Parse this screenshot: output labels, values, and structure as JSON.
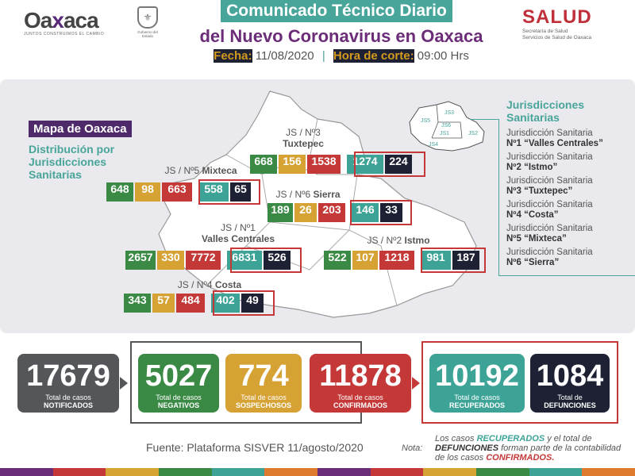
{
  "header": {
    "logo_word_a": "Oa",
    "logo_word_x": "x",
    "logo_word_b": "aca",
    "logo_tagline": "JUNTOS CONSTRUIMOS EL CAMBIO",
    "seal_caption": "Gobierno del Estado",
    "title_line1": "Comunicado Técnico Diario",
    "title_line2": "del Nuevo Coronavirus en Oaxaca",
    "date_label": "Fecha:",
    "date_value": "11/08/2020",
    "cut_label": "Hora de corte:",
    "cut_value": "09:00 Hrs",
    "salud_name": "SALUD",
    "salud_sub1": "Secretaría de Salud",
    "salud_sub2": "Servicios de Salud de Oaxaca"
  },
  "map": {
    "label": "Mapa de Oaxaca",
    "description": "Distribución por Jurisdicciones Sanitarias"
  },
  "regions": [
    {
      "pre": "JS / Nº3",
      "name": "Tuxtepec",
      "values": [
        668,
        156,
        1538,
        1274,
        224
      ]
    },
    {
      "pre": "JS / Nº5",
      "name": "Mixteca",
      "values": [
        648,
        98,
        663,
        558,
        65
      ]
    },
    {
      "pre": "JS / Nº6",
      "name": "Sierra",
      "values": [
        189,
        26,
        203,
        146,
        33
      ]
    },
    {
      "pre": "JS / Nº1",
      "name": "Valles Centrales",
      "values": [
        2657,
        330,
        7772,
        6831,
        526
      ]
    },
    {
      "pre": "JS / Nº2",
      "name": "Istmo",
      "values": [
        522,
        107,
        1218,
        981,
        187
      ]
    },
    {
      "pre": "JS / Nº4",
      "name": "Costa",
      "values": [
        343,
        57,
        484,
        402,
        49
      ]
    }
  ],
  "legend": {
    "heading": "Jurisdicciones Sanitarias",
    "mini_labels": [
      "JS5",
      "JS3",
      "JS6",
      "JS1",
      "JS4",
      "JS2"
    ],
    "items": [
      {
        "line1": "Jurisdicción Sanitaria",
        "line2": "Nº1 “Valles Centrales”"
      },
      {
        "line1": "Jurisdicción Sanitaria",
        "line2": "Nº2 “Istmo”"
      },
      {
        "line1": "Jurisdicción Sanitaria",
        "line2": "Nº3 “Tuxtepec”"
      },
      {
        "line1": "Jurisdicción Sanitaria",
        "line2": "Nº4 “Costa”"
      },
      {
        "line1": "Jurisdicción Sanitaria",
        "line2": "Nº5 “Mixteca”"
      },
      {
        "line1": "Jurisdicción Sanitaria",
        "line2": "Nº6 “Sierra”"
      }
    ]
  },
  "totals": [
    {
      "value": "17679",
      "line1": "Total de casos",
      "line2": "NOTIFICADOS",
      "color": "#545659"
    },
    {
      "value": "5027",
      "line1": "Total de casos",
      "line2": "NEGATIVOS",
      "color": "#3a8a45"
    },
    {
      "value": "774",
      "line1": "Total de casos",
      "line2": "SOSPECHOSOS",
      "color": "#d6a234"
    },
    {
      "value": "11878",
      "line1": "Total de casos",
      "line2": "CONFIRMADOS",
      "color": "#c43838"
    },
    {
      "value": "10192",
      "line1": "Total de casos",
      "line2": "RECUPERADOS",
      "color": "#3ea397"
    },
    {
      "value": "1084",
      "line1": "Total de",
      "line2": "DEFUNCIONES",
      "color": "#1e2133"
    }
  ],
  "footer": {
    "source": "Fuente: Plataforma SISVER 11/agosto/2020",
    "note_label": "Nota:",
    "note_p1": "Los casos",
    "note_recuperados": "RECUPERADOS",
    "note_p2": "y el total de",
    "note_defunciones": "DEFUNCIONES",
    "note_p3": "forman parte de la contabilidad de los casos",
    "note_confirmados": "CONFIRMADOS."
  },
  "colors": {
    "green": "#3a8a45",
    "yellow": "#d6a234",
    "red": "#c43838",
    "teal": "#3ea397",
    "navy": "#1e2133",
    "purple": "#6b2c78"
  }
}
